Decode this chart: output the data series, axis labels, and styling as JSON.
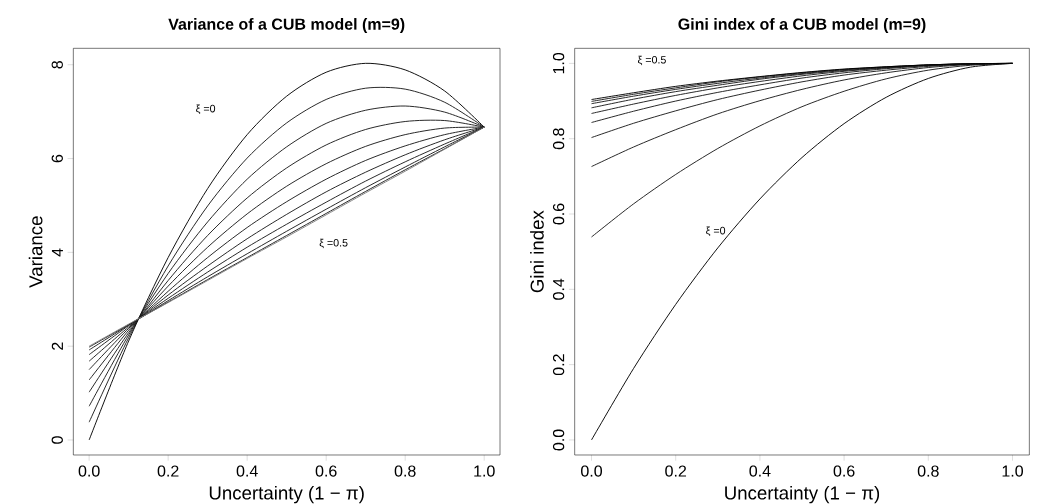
{
  "chart_data": [
    {
      "type": "line",
      "title": "Variance of a CUB model    (m=9)",
      "xlabel": "Uncertainty  (1 − π)",
      "ylabel": "Variance",
      "marker": "none",
      "line_style": "solid",
      "x": [
        0,
        0.1,
        0.2,
        0.3,
        0.4,
        0.5,
        0.6,
        0.7,
        0.8,
        0.9,
        1
      ],
      "xlim": [
        -0.04,
        1.04
      ],
      "ylim": [
        -0.32,
        8.35
      ],
      "xticks": [
        {
          "value": 0,
          "label": "0.0"
        },
        {
          "value": 0.2,
          "label": "0.2"
        },
        {
          "value": 0.4,
          "label": "0.4"
        },
        {
          "value": 0.6,
          "label": "0.6"
        },
        {
          "value": 0.8,
          "label": "0.8"
        },
        {
          "value": 1,
          "label": "1.0"
        }
      ],
      "yticks": [
        0,
        2,
        4,
        6,
        8
      ],
      "series": [
        {
          "color": "#000000",
          "values": [
            0,
            2.11,
            3.89,
            5.36,
            6.51,
            7.33,
            7.84,
            8.03,
            7.89,
            7.44,
            6.67
          ]
        },
        {
          "color": "#1a1a1a",
          "values": [
            0.38,
            2.18,
            3.71,
            4.99,
            6.01,
            6.76,
            7.26,
            7.5,
            7.48,
            7.2,
            6.67
          ]
        },
        {
          "color": "#1a1a1a",
          "values": [
            0.72,
            2.24,
            3.55,
            4.65,
            5.56,
            6.25,
            6.75,
            7.03,
            7.12,
            6.99,
            6.67
          ]
        },
        {
          "color": "#1a1a1a",
          "values": [
            1.02,
            2.29,
            3.4,
            4.36,
            5.16,
            5.8,
            6.29,
            6.62,
            6.79,
            6.81,
            6.67
          ]
        },
        {
          "color": "#1a1a1a",
          "values": [
            1.28,
            2.34,
            3.28,
            4.11,
            4.82,
            5.41,
            5.89,
            6.26,
            6.51,
            6.65,
            6.67
          ]
        },
        {
          "color": "#1a1a1a",
          "values": [
            1.5,
            2.38,
            3.17,
            3.89,
            4.53,
            5.08,
            5.56,
            5.96,
            6.27,
            6.51,
            6.67
          ]
        },
        {
          "color": "#1a1a1a",
          "values": [
            1.68,
            2.41,
            3.09,
            3.71,
            4.29,
            4.81,
            5.29,
            5.71,
            6.08,
            6.4,
            6.67
          ]
        },
        {
          "color": "#1a1a1a",
          "values": [
            1.82,
            2.44,
            3.02,
            3.58,
            4.11,
            4.6,
            5.07,
            5.52,
            5.93,
            6.31,
            6.67
          ]
        },
        {
          "color": "#1a1a1a",
          "values": [
            1.92,
            2.45,
            2.97,
            3.48,
            3.97,
            4.45,
            4.92,
            5.38,
            5.82,
            6.25,
            6.67
          ]
        },
        {
          "color": "#1a1a1a",
          "values": [
            1.98,
            2.46,
            2.94,
            3.42,
            3.89,
            4.36,
            4.83,
            5.3,
            5.76,
            6.21,
            6.67
          ]
        },
        {
          "color": "#808080",
          "values": [
            2,
            2.47,
            2.93,
            3.4,
            3.87,
            4.33,
            4.8,
            5.27,
            5.73,
            6.2,
            6.67
          ]
        }
      ],
      "annotations": [
        "ξ =0",
        "ξ =0.5"
      ]
    },
    {
      "type": "line",
      "title": "Gini index of a CUB model    (m=9)",
      "xlabel": "Uncertainty  (1 − π)",
      "ylabel": "Gini index",
      "marker": "none",
      "line_style": "solid",
      "x": [
        0,
        0.1,
        0.2,
        0.3,
        0.4,
        0.5,
        0.6,
        0.7,
        0.8,
        0.9,
        1
      ],
      "xlim": [
        -0.04,
        1.04
      ],
      "ylim": [
        -0.04,
        1.04
      ],
      "xticks": [
        {
          "value": 0,
          "label": "0.0"
        },
        {
          "value": 0.2,
          "label": "0.2"
        },
        {
          "value": 0.4,
          "label": "0.4"
        },
        {
          "value": 0.6,
          "label": "0.6"
        },
        {
          "value": 0.8,
          "label": "0.8"
        },
        {
          "value": 1,
          "label": "1.0"
        }
      ],
      "yticks": [
        {
          "value": 0,
          "label": "0.0"
        },
        {
          "value": 0.2,
          "label": "0.2"
        },
        {
          "value": 0.4,
          "label": "0.4"
        },
        {
          "value": 0.6,
          "label": "0.6"
        },
        {
          "value": 0.8,
          "label": "0.8"
        },
        {
          "value": 1,
          "label": "1.0"
        }
      ],
      "series": [
        {
          "color": "#000000",
          "values": [
            0,
            0.19,
            0.36,
            0.51,
            0.64,
            0.75,
            0.84,
            0.91,
            0.96,
            0.99,
            1
          ]
        },
        {
          "color": "#1a1a1a",
          "values": [
            0.539,
            0.627,
            0.705,
            0.774,
            0.834,
            0.885,
            0.926,
            0.959,
            0.982,
            0.995,
            1
          ]
        },
        {
          "color": "#1a1a1a",
          "values": [
            0.726,
            0.778,
            0.824,
            0.866,
            0.901,
            0.931,
            0.956,
            0.975,
            0.989,
            0.997,
            1
          ]
        },
        {
          "color": "#1a1a1a",
          "values": [
            0.803,
            0.841,
            0.874,
            0.904,
            0.929,
            0.951,
            0.969,
            0.982,
            0.992,
            0.998,
            1
          ]
        },
        {
          "color": "#1a1a1a",
          "values": [
            0.843,
            0.873,
            0.9,
            0.923,
            0.943,
            0.961,
            0.975,
            0.986,
            0.994,
            0.998,
            1
          ]
        },
        {
          "color": "#1a1a1a",
          "values": [
            0.867,
            0.892,
            0.915,
            0.935,
            0.952,
            0.967,
            0.979,
            0.988,
            0.995,
            0.999,
            1
          ]
        },
        {
          "color": "#1a1a1a",
          "values": [
            0.882,
            0.905,
            0.925,
            0.942,
            0.958,
            0.971,
            0.981,
            0.989,
            0.995,
            0.999,
            1
          ]
        },
        {
          "color": "#1a1a1a",
          "values": [
            0.893,
            0.913,
            0.931,
            0.947,
            0.961,
            0.973,
            0.983,
            0.99,
            0.996,
            0.999,
            1
          ]
        },
        {
          "color": "#1a1a1a",
          "values": [
            0.899,
            0.918,
            0.935,
            0.951,
            0.964,
            0.975,
            0.984,
            0.991,
            0.996,
            0.999,
            1
          ]
        },
        {
          "color": "#000000",
          "values": [
            0.904,
            0.922,
            0.939,
            0.953,
            0.965,
            0.976,
            0.985,
            0.991,
            0.996,
            0.999,
            1
          ]
        }
      ],
      "annotations": [
        "ξ =0.5",
        "ξ =0"
      ]
    }
  ]
}
